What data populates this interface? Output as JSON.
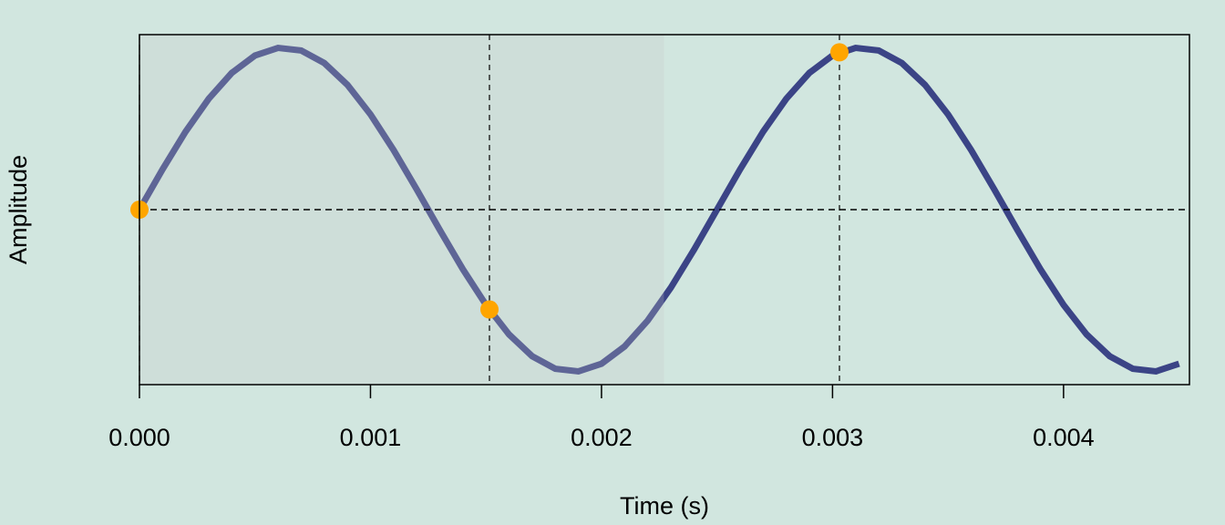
{
  "chart_data": {
    "type": "line",
    "xlabel": "Time (s)",
    "ylabel": "Amplitude",
    "x": [
      0,
      0.0001,
      0.0002,
      0.0003,
      0.0004,
      0.0005,
      0.0006,
      0.0007,
      0.0008,
      0.0009,
      0.001,
      0.0011,
      0.0012,
      0.0013,
      0.0014,
      0.0015,
      0.0016,
      0.0017,
      0.0018,
      0.0019,
      0.002,
      0.0021,
      0.0022,
      0.0023,
      0.0024,
      0.0025,
      0.0026,
      0.0027,
      0.0028,
      0.0029,
      0.003,
      0.0031,
      0.0032,
      0.0033,
      0.0034,
      0.0035,
      0.0036,
      0.0037,
      0.0038,
      0.0039,
      0.004,
      0.0041,
      0.0042,
      0.0043,
      0.0044,
      0.0045
    ],
    "values": [
      0,
      0.2487,
      0.4818,
      0.6845,
      0.8443,
      0.9511,
      0.998,
      0.9823,
      0.9048,
      0.7705,
      0.5878,
      0.3681,
      0.1253,
      -0.1253,
      -0.3681,
      -0.5878,
      -0.7705,
      -0.9048,
      -0.9823,
      -0.998,
      -0.9511,
      -0.8443,
      -0.6845,
      -0.4818,
      -0.2487,
      0,
      0.2487,
      0.4818,
      0.6845,
      0.8443,
      0.9511,
      0.998,
      0.9823,
      0.9048,
      0.7705,
      0.5878,
      0.3681,
      0.1253,
      -0.1253,
      -0.3681,
      -0.5878,
      -0.7705,
      -0.9048,
      -0.9823,
      -0.998,
      -0.9511
    ],
    "color": "#3b4486",
    "samples": {
      "x": [
        0,
        0.001515,
        0.00303
      ],
      "values": [
        0,
        -0.616,
        0.971
      ],
      "color": "#ffa500"
    },
    "highlight_xlim": [
      0,
      0.00227
    ],
    "xlim": [
      0,
      0.004545
    ],
    "ylim": [
      -1.08,
      1.08
    ],
    "xticks": [
      {
        "value": 0,
        "label": "0.000"
      },
      0.001,
      0.002,
      0.003,
      0.004
    ]
  }
}
